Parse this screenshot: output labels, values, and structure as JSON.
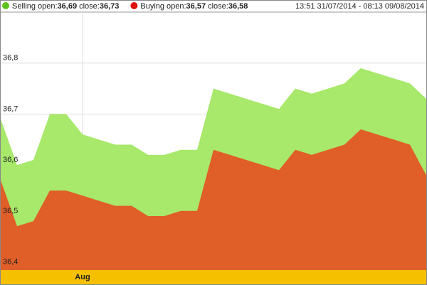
{
  "chart_data": {
    "type": "area",
    "period": "13:51 31/07/2014 - 08:13 09/08/2014",
    "open_text": "open:",
    "close_text": "close:",
    "x": [
      0,
      1,
      2,
      3,
      4,
      5,
      7,
      8,
      9,
      10,
      11,
      12,
      13,
      15,
      17,
      18,
      19,
      21,
      22,
      25,
      26
    ],
    "xlim": [
      0,
      26
    ],
    "xticks": [
      {
        "value": 5,
        "label": "Aug"
      }
    ],
    "series": [
      {
        "name": "Selling",
        "color": "#a8e86a",
        "marker_color": "#5cc21c",
        "open": {
          "value": 36.69,
          "label": "36,69"
        },
        "close": {
          "value": 36.73,
          "label": "36,73"
        },
        "values": [
          36.69,
          36.6,
          36.61,
          36.7,
          36.7,
          36.66,
          36.64,
          36.64,
          36.62,
          36.62,
          36.63,
          36.63,
          36.75,
          36.73,
          36.71,
          36.75,
          36.74,
          36.76,
          36.79,
          36.76,
          36.73
        ]
      },
      {
        "name": "Buying",
        "color": "#e05e28",
        "marker_color": "#e01010",
        "open": {
          "value": 36.57,
          "label": "36,57"
        },
        "close": {
          "value": 36.58,
          "label": "36,58"
        },
        "values": [
          36.57,
          36.48,
          36.49,
          36.55,
          36.55,
          36.54,
          36.52,
          36.52,
          36.5,
          36.5,
          36.51,
          36.51,
          36.63,
          36.61,
          36.59,
          36.63,
          36.62,
          36.64,
          36.67,
          36.64,
          36.58
        ]
      }
    ],
    "ylim": [
      36.394,
      36.9
    ],
    "yticks": [
      {
        "value": 36.4,
        "label": "36,4"
      },
      {
        "value": 36.5,
        "label": "36,5"
      },
      {
        "value": 36.6,
        "label": "36,6"
      },
      {
        "value": 36.7,
        "label": "36,7"
      },
      {
        "value": 36.8,
        "label": "36,8"
      }
    ],
    "grid": true
  }
}
